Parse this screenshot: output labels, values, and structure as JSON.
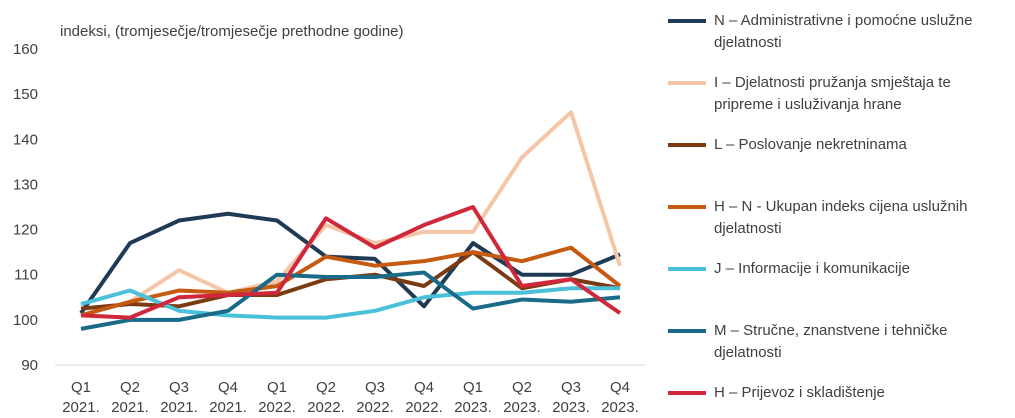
{
  "chart_data": {
    "type": "line",
    "y_label": "indeksi, (tromjesečje/tromjesečje prethodne godine)",
    "categories": [
      "Q1 2021.",
      "Q2 2021.",
      "Q3 2021.",
      "Q4 2021.",
      "Q1 2022.",
      "Q2 2022.",
      "Q3 2022.",
      "Q4 2022.",
      "Q1 2023.",
      "Q2 2023.",
      "Q3 2023.",
      "Q4 2023."
    ],
    "ylim": [
      90,
      160
    ],
    "yticks": [
      90,
      100,
      110,
      120,
      130,
      140,
      150,
      160
    ],
    "grid": false,
    "series": [
      {
        "name": "N – Administrativne i pomoćne uslužne djelatnosti",
        "color": "#1f3a54",
        "values": [
          101.5,
          117,
          122,
          123.5,
          122,
          114,
          113.5,
          103,
          117,
          110,
          110,
          114.5
        ]
      },
      {
        "name": "I – Djelatnosti pružanja smještaja te pripreme i usluživanja hrane",
        "color": "#f5c6a5",
        "values": [
          101,
          104,
          111,
          106,
          108.5,
          121,
          117,
          119.5,
          119.5,
          136,
          146,
          112
        ]
      },
      {
        "name": "L – Poslovanje nekretninama",
        "color": "#7b3b12",
        "values": [
          102.5,
          103.5,
          103,
          105.5,
          105.5,
          109,
          110,
          107.5,
          115,
          107,
          109,
          107
        ]
      },
      {
        "name": "H – N  - Ukupan indeks cijena uslužnih djelatnosti",
        "color": "#c55a11",
        "values": [
          101,
          104,
          106.5,
          106,
          107.5,
          114,
          112,
          113,
          115,
          113,
          116,
          107.5
        ]
      },
      {
        "name": "J – Informacije i komunikacije",
        "color": "#4bc0d9",
        "values": [
          103.5,
          106.5,
          102,
          101,
          100.5,
          100.5,
          102,
          105,
          106,
          106,
          107,
          107
        ]
      },
      {
        "name": "M – Stručne, znanstvene i tehničke djelatnosti",
        "color": "#1a6a8a",
        "values": [
          98,
          100,
          100,
          102,
          110,
          109.5,
          109.5,
          110.5,
          102.5,
          104.5,
          104,
          105
        ]
      },
      {
        "name": "H – Prijevoz i skladištenje",
        "color": "#d0273b",
        "values": [
          101,
          100.5,
          105,
          105.5,
          106,
          122.5,
          116,
          121,
          125,
          107.5,
          109,
          101.5
        ]
      }
    ]
  }
}
